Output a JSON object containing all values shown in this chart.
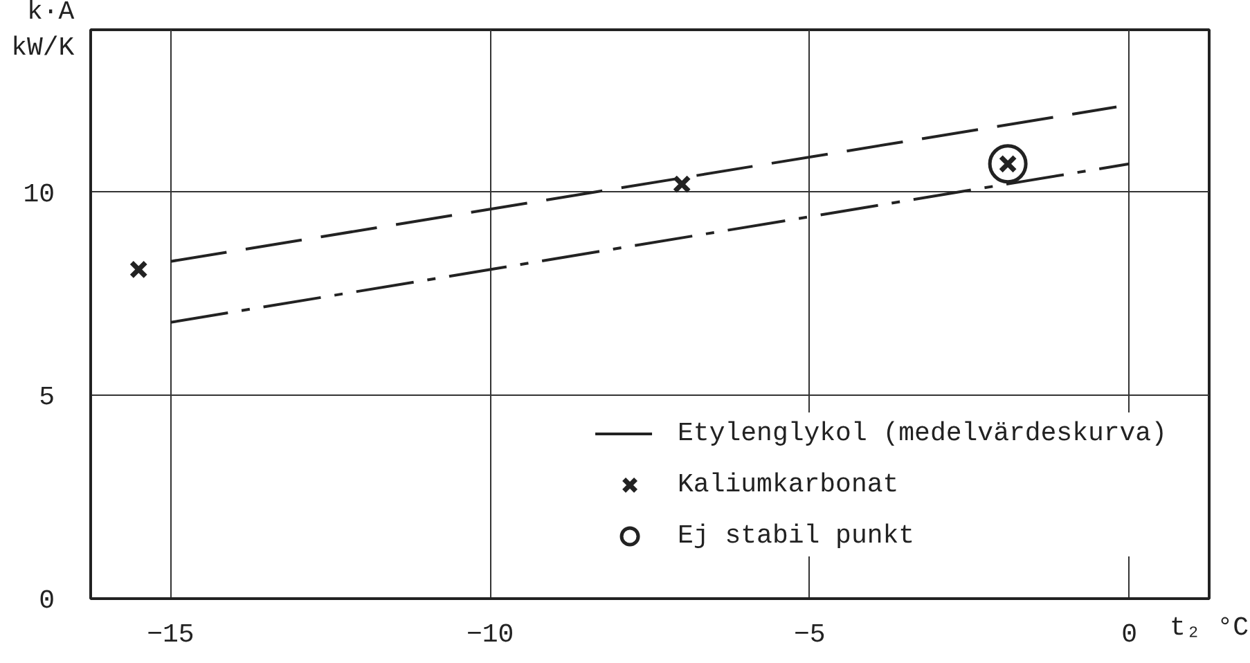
{
  "chart_data": {
    "type": "line",
    "ylabel": "k·A\nkW/K",
    "xlabel": "t₂ °C",
    "xlim": [
      -16.25,
      1.25
    ],
    "ylim": [
      0,
      14
    ],
    "xticks": [
      -15,
      -10,
      -5,
      0
    ],
    "yticks": [
      0,
      5,
      10
    ],
    "grid": true,
    "legend": "bottom right",
    "series": [
      {
        "name": "Etylenglykol (medelvärdeskurva)",
        "line_style": "dashed",
        "color": "#222222",
        "x": [
          -15,
          -0.2
        ],
        "values": [
          8.3,
          12.1
        ]
      },
      {
        "line_style": "dashdot",
        "color": "#222222",
        "x": [
          -15,
          0
        ],
        "values": [
          6.8,
          10.7
        ]
      },
      {
        "name": "Kaliumkarbonat",
        "type": "scatter",
        "marker": "cross",
        "color": "#222222",
        "x": [
          -15.5,
          -7.0,
          -1.9
        ],
        "values": [
          8.1,
          10.2,
          10.7
        ]
      },
      {
        "name": "Ej stabil punkt",
        "type": "scatter",
        "color": "#222222",
        "x": [
          -1.9
        ],
        "values": [
          10.7
        ]
      }
    ]
  }
}
